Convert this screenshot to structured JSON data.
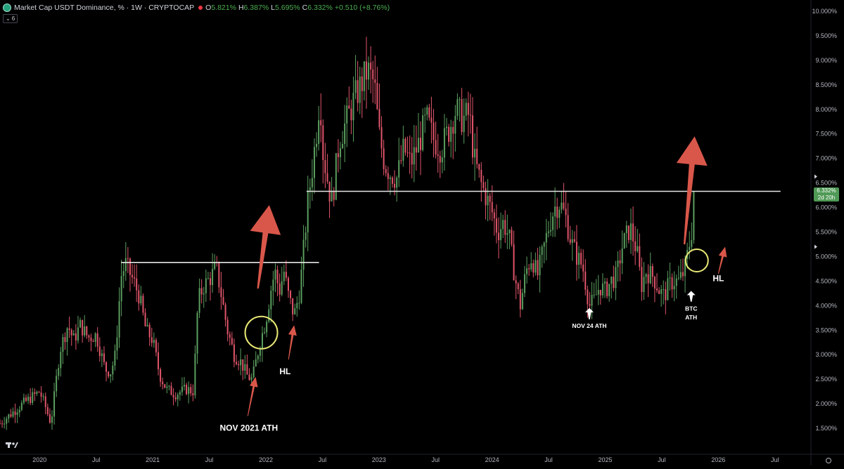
{
  "header": {
    "title": "Market Cap USDT Dominance, % · 1W · CRYPTOCAP",
    "open_label": "O",
    "open": "5.821%",
    "high_label": "H",
    "high": "6.387%",
    "low_label": "L",
    "low": "5.695%",
    "close_label": "C",
    "close": "6.332%",
    "change": "+0.510 (+8.76%)",
    "indicator_count": "6"
  },
  "price_tag": {
    "value": "6.332%",
    "countdown": "2d 20h"
  },
  "colors": {
    "up": "#5b9e5f",
    "down": "#e0556a",
    "arrow": "#d9574a",
    "circle": "#e9e875",
    "level": "#e6e6e6",
    "price_tag": "#4f9a56"
  },
  "chart_data": {
    "type": "candlestick",
    "timeframe": "1W",
    "y_axis": {
      "range": [
        1.0,
        10.0
      ],
      "unit": "%",
      "ticks": [
        "1.500%",
        "2.000%",
        "2.500%",
        "3.000%",
        "3.500%",
        "4.000%",
        "4.500%",
        "5.000%",
        "5.500%",
        "6.000%",
        "6.500%",
        "7.000%",
        "7.500%",
        "8.000%",
        "8.500%",
        "9.000%",
        "9.500%",
        "10.000%"
      ]
    },
    "x_axis": {
      "range": [
        2019.65,
        2026.8
      ],
      "ticks": [
        {
          "t": 2020.0,
          "label": "2020"
        },
        {
          "t": 2020.5,
          "label": "Jul"
        },
        {
          "t": 2021.0,
          "label": "2021"
        },
        {
          "t": 2021.5,
          "label": "Jul"
        },
        {
          "t": 2022.0,
          "label": "2022"
        },
        {
          "t": 2022.5,
          "label": "Jul"
        },
        {
          "t": 2023.0,
          "label": "2023"
        },
        {
          "t": 2023.5,
          "label": "Jul"
        },
        {
          "t": 2024.0,
          "label": "2024"
        },
        {
          "t": 2024.5,
          "label": "Jul"
        },
        {
          "t": 2025.0,
          "label": "2025"
        },
        {
          "t": 2025.5,
          "label": "Jul"
        },
        {
          "t": 2026.0,
          "label": "2026"
        },
        {
          "t": 2026.5,
          "label": "Jul"
        }
      ]
    },
    "price_path": [
      [
        2019.65,
        1.6
      ],
      [
        2019.85,
        2.0
      ],
      [
        2020.0,
        2.25
      ],
      [
        2020.05,
        1.95
      ],
      [
        2020.1,
        1.6
      ],
      [
        2020.18,
        3.1
      ],
      [
        2020.25,
        3.6
      ],
      [
        2020.3,
        3.3
      ],
      [
        2020.36,
        3.6
      ],
      [
        2020.43,
        3.35
      ],
      [
        2020.5,
        3.4
      ],
      [
        2020.58,
        2.7
      ],
      [
        2020.63,
        2.65
      ],
      [
        2020.67,
        3.0
      ],
      [
        2020.72,
        4.6
      ],
      [
        2020.76,
        4.85
      ],
      [
        2020.83,
        4.5
      ],
      [
        2020.88,
        4.2
      ],
      [
        2020.94,
        3.5
      ],
      [
        2021.0,
        3.3
      ],
      [
        2021.06,
        2.6
      ],
      [
        2021.12,
        2.3
      ],
      [
        2021.2,
        2.2
      ],
      [
        2021.3,
        2.3
      ],
      [
        2021.36,
        2.25
      ],
      [
        2021.4,
        4.1
      ],
      [
        2021.45,
        4.4
      ],
      [
        2021.52,
        4.6
      ],
      [
        2021.56,
        4.8
      ],
      [
        2021.6,
        4.3
      ],
      [
        2021.66,
        3.5
      ],
      [
        2021.72,
        3.0
      ],
      [
        2021.78,
        2.85
      ],
      [
        2021.84,
        2.55
      ],
      [
        2021.88,
        2.5
      ],
      [
        2021.92,
        2.95
      ],
      [
        2021.96,
        3.35
      ],
      [
        2022.0,
        3.7
      ],
      [
        2022.05,
        4.4
      ],
      [
        2022.08,
        4.7
      ],
      [
        2022.12,
        4.3
      ],
      [
        2022.16,
        4.7
      ],
      [
        2022.2,
        4.2
      ],
      [
        2022.25,
        3.8
      ],
      [
        2022.3,
        4.3
      ],
      [
        2022.34,
        5.3
      ],
      [
        2022.37,
        6.1
      ],
      [
        2022.41,
        6.8
      ],
      [
        2022.45,
        7.6
      ],
      [
        2022.48,
        8.4
      ],
      [
        2022.5,
        7.2
      ],
      [
        2022.55,
        6.5
      ],
      [
        2022.58,
        6.1
      ],
      [
        2022.6,
        6.4
      ],
      [
        2022.65,
        7.4
      ],
      [
        2022.72,
        7.8
      ],
      [
        2022.78,
        8.2
      ],
      [
        2022.84,
        8.5
      ],
      [
        2022.9,
        8.8
      ],
      [
        2022.96,
        8.5
      ],
      [
        2023.0,
        7.5
      ],
      [
        2023.05,
        6.9
      ],
      [
        2023.1,
        6.7
      ],
      [
        2023.16,
        6.6
      ],
      [
        2023.22,
        7.2
      ],
      [
        2023.28,
        6.9
      ],
      [
        2023.35,
        7.3
      ],
      [
        2023.42,
        7.8
      ],
      [
        2023.48,
        7.4
      ],
      [
        2023.55,
        7.2
      ],
      [
        2023.62,
        7.6
      ],
      [
        2023.68,
        8.0
      ],
      [
        2023.74,
        7.8
      ],
      [
        2023.8,
        7.9
      ],
      [
        2023.84,
        7.0
      ],
      [
        2023.9,
        6.5
      ],
      [
        2023.95,
        6.2
      ],
      [
        2024.0,
        5.9
      ],
      [
        2024.05,
        5.5
      ],
      [
        2024.1,
        5.7
      ],
      [
        2024.15,
        5.4
      ],
      [
        2024.2,
        4.6
      ],
      [
        2024.25,
        4.0
      ],
      [
        2024.3,
        4.7
      ],
      [
        2024.35,
        5.0
      ],
      [
        2024.4,
        4.6
      ],
      [
        2024.45,
        5.1
      ],
      [
        2024.5,
        5.6
      ],
      [
        2024.55,
        6.0
      ],
      [
        2024.6,
        6.1
      ],
      [
        2024.65,
        5.8
      ],
      [
        2024.7,
        5.3
      ],
      [
        2024.75,
        5.0
      ],
      [
        2024.8,
        4.8
      ],
      [
        2024.86,
        4.0
      ],
      [
        2024.9,
        4.1
      ],
      [
        2024.95,
        4.4
      ],
      [
        2025.0,
        4.3
      ],
      [
        2025.05,
        4.5
      ],
      [
        2025.1,
        4.6
      ],
      [
        2025.15,
        5.2
      ],
      [
        2025.22,
        5.6
      ],
      [
        2025.28,
        5.1
      ],
      [
        2025.32,
        4.4
      ],
      [
        2025.36,
        4.7
      ],
      [
        2025.42,
        4.6
      ],
      [
        2025.48,
        4.3
      ],
      [
        2025.52,
        4.2
      ],
      [
        2025.56,
        4.4
      ],
      [
        2025.6,
        4.5
      ],
      [
        2025.65,
        4.5
      ],
      [
        2025.7,
        4.7
      ],
      [
        2025.74,
        5.2
      ],
      [
        2025.77,
        5.6
      ],
      [
        2025.8,
        6.33
      ]
    ],
    "last_price": 6.332,
    "levels": [
      {
        "value": 4.88,
        "from": 2020.72,
        "to": 2022.47
      },
      {
        "value": 6.33,
        "from": 2022.36,
        "to": 2026.55
      }
    ],
    "annotations": [
      {
        "type": "text",
        "text": "NOV 2021 ATH",
        "t": 2021.85,
        "y": 1.45
      },
      {
        "type": "text",
        "text": "HL",
        "t": 2022.17,
        "y": 2.6
      },
      {
        "type": "text",
        "text": "NOV 24 ATH",
        "t": 2024.86,
        "y": 3.55
      },
      {
        "type": "text",
        "text": "BTC",
        "t": 2025.76,
        "y": 3.9
      },
      {
        "type": "text",
        "text": "ATH",
        "t": 2025.76,
        "y": 3.72
      },
      {
        "type": "text",
        "text": "HL",
        "t": 2026.0,
        "y": 4.5
      },
      {
        "type": "circle",
        "t": 2021.96,
        "y": 3.45
      },
      {
        "type": "circle",
        "t": 2025.81,
        "y": 4.92
      },
      {
        "type": "arrow-big-up",
        "t": 2021.93,
        "y": 4.35,
        "to_t": 2022.03,
        "to_y": 6.05
      },
      {
        "type": "arrow-big-up",
        "t": 2025.7,
        "y": 5.25,
        "to_t": 2025.79,
        "to_y": 7.45
      },
      {
        "type": "arrow-thin-up",
        "t": 2021.84,
        "y": 1.75,
        "to_t": 2021.91,
        "to_y": 2.55
      },
      {
        "type": "arrow-thin-up",
        "t": 2022.2,
        "y": 2.9,
        "to_t": 2022.25,
        "to_y": 3.6
      },
      {
        "type": "arrow-thin-up",
        "t": 2026.0,
        "y": 4.65,
        "to_t": 2026.06,
        "to_y": 5.2
      },
      {
        "type": "arrow-white-up",
        "t": 2024.86,
        "y": 3.72,
        "to_t": 2024.86,
        "to_y": 3.95
      },
      {
        "type": "arrow-white-up",
        "t": 2025.76,
        "y": 4.08,
        "to_t": 2025.76,
        "to_y": 4.3
      }
    ]
  }
}
